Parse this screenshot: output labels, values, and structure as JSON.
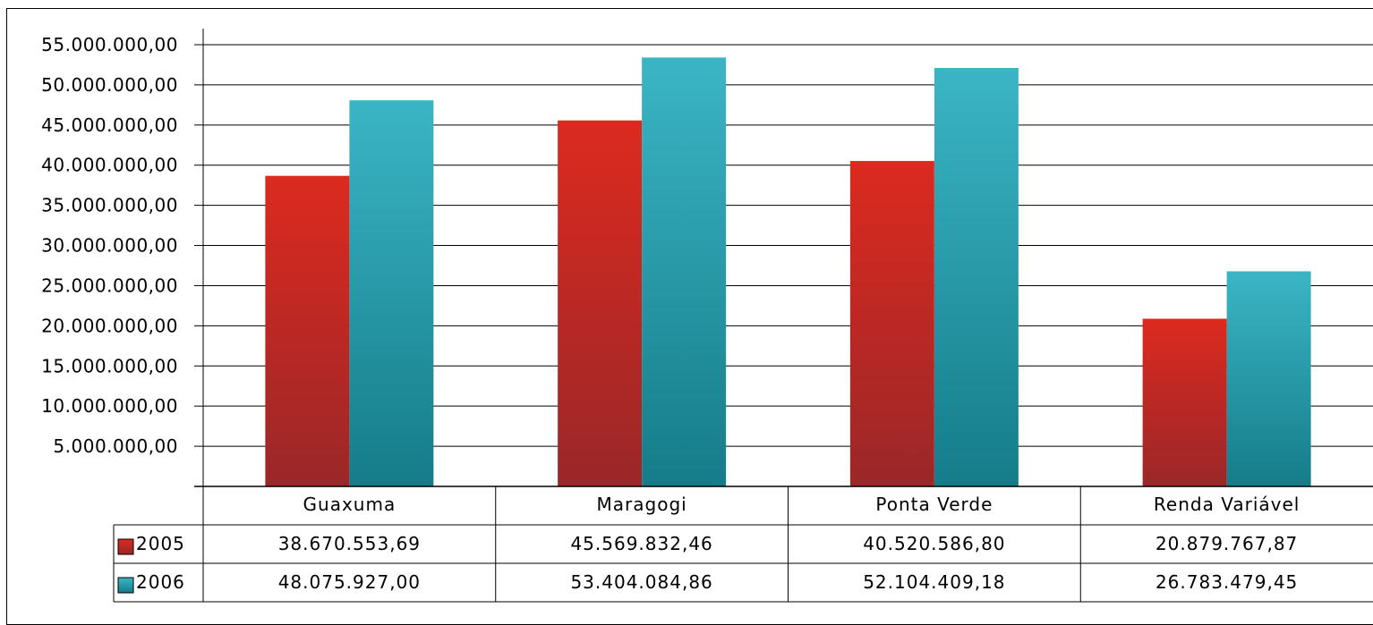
{
  "chart_data": {
    "type": "bar",
    "categories": [
      "Guaxuma",
      "Maragogi",
      "Ponta Verde",
      "Renda Variável"
    ],
    "series": [
      {
        "name": "2005",
        "values": [
          38670553.69,
          45569832.46,
          40520586.8,
          20879767.87
        ],
        "labels": [
          "38.670.553,69",
          "45.569.832,46",
          "40.520.586,80",
          "20.879.767,87"
        ],
        "color": "#d5241f"
      },
      {
        "name": "2006",
        "values": [
          48075927.0,
          53404084.86,
          52104409.18,
          26783479.45
        ],
        "labels": [
          "48.075.927,00",
          "53.404.084,86",
          "52.104.409,18",
          "26.783.479,45"
        ],
        "color": "#36b0c1"
      }
    ],
    "yticks": [
      5000000,
      10000000,
      15000000,
      20000000,
      25000000,
      30000000,
      35000000,
      40000000,
      45000000,
      50000000,
      55000000
    ],
    "ytick_labels": [
      "5.000.000,00",
      "10.000.000,00",
      "15.000.000,00",
      "20.000.000,00",
      "25.000.000,00",
      "30.000.000,00",
      "35.000.000,00",
      "40.000.000,00",
      "45.000.000,00",
      "50.000.000,00",
      "55.000.000,00"
    ],
    "ylim": [
      0,
      55000000
    ],
    "grid": true,
    "legend": "data-table",
    "title": "",
    "xlabel": "",
    "ylabel": ""
  }
}
